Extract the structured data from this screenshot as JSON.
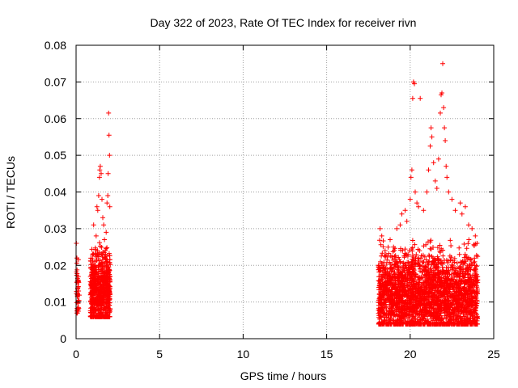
{
  "chart_data": {
    "type": "scatter",
    "title": "Day 322 of 2023, Rate Of TEC Index for receiver rivn",
    "xlabel": "GPS time / hours",
    "ylabel": "ROTI / TECUs",
    "xlim": [
      0,
      25
    ],
    "ylim": [
      0,
      0.08
    ],
    "x_ticks": [
      "0",
      "5",
      "10",
      "15",
      "20",
      "25"
    ],
    "y_ticks": [
      "0",
      "0.01",
      "0.02",
      "0.03",
      "0.04",
      "0.05",
      "0.06",
      "0.07",
      "0.08"
    ],
    "grid": true,
    "marker": "plus",
    "color": "#ff0000",
    "series": [
      {
        "points": [
          [
            0.02,
            0.026
          ],
          [
            0.05,
            0.022
          ],
          [
            0.08,
            0.012
          ],
          [
            0.1,
            0.01
          ],
          [
            0.12,
            0.008
          ],
          [
            0.15,
            0.013
          ],
          [
            1.05,
            0.031
          ],
          [
            1.1,
            0.018
          ],
          [
            1.2,
            0.028
          ],
          [
            1.3,
            0.035
          ],
          [
            1.35,
            0.039
          ],
          [
            1.4,
            0.044
          ],
          [
            1.42,
            0.046
          ],
          [
            1.45,
            0.047
          ],
          [
            1.5,
            0.045
          ],
          [
            1.55,
            0.038
          ],
          [
            1.6,
            0.033
          ],
          [
            1.65,
            0.031
          ],
          [
            1.7,
            0.027
          ],
          [
            1.75,
            0.024
          ],
          [
            1.8,
            0.029
          ],
          [
            1.85,
            0.037
          ],
          [
            1.9,
            0.039
          ],
          [
            1.92,
            0.045
          ],
          [
            1.95,
            0.0615
          ],
          [
            1.97,
            0.0555
          ],
          [
            2.0,
            0.05
          ],
          [
            2.02,
            0.036
          ],
          [
            1.25,
            0.036
          ],
          [
            1.15,
            0.021
          ],
          [
            18.2,
            0.03
          ],
          [
            18.3,
            0.028
          ],
          [
            18.5,
            0.024
          ],
          [
            18.8,
            0.027
          ],
          [
            19.0,
            0.025
          ],
          [
            19.2,
            0.03
          ],
          [
            19.4,
            0.031
          ],
          [
            19.5,
            0.034
          ],
          [
            19.7,
            0.035
          ],
          [
            19.8,
            0.032
          ],
          [
            20.0,
            0.038
          ],
          [
            20.05,
            0.044
          ],
          [
            20.1,
            0.046
          ],
          [
            20.15,
            0.0655
          ],
          [
            20.2,
            0.07
          ],
          [
            20.25,
            0.0695
          ],
          [
            20.3,
            0.04
          ],
          [
            20.4,
            0.037
          ],
          [
            20.5,
            0.036
          ],
          [
            20.6,
            0.0655
          ],
          [
            20.8,
            0.035
          ],
          [
            21.0,
            0.04
          ],
          [
            21.1,
            0.046
          ],
          [
            21.2,
            0.0525
          ],
          [
            21.25,
            0.0575
          ],
          [
            21.3,
            0.055
          ],
          [
            21.4,
            0.048
          ],
          [
            21.5,
            0.043
          ],
          [
            21.6,
            0.041
          ],
          [
            21.7,
            0.049
          ],
          [
            21.8,
            0.0615
          ],
          [
            21.85,
            0.0665
          ],
          [
            21.9,
            0.067
          ],
          [
            21.95,
            0.075
          ],
          [
            22.0,
            0.063
          ],
          [
            22.05,
            0.0575
          ],
          [
            22.1,
            0.054
          ],
          [
            22.15,
            0.047
          ],
          [
            22.2,
            0.044
          ],
          [
            22.3,
            0.04
          ],
          [
            22.5,
            0.038
          ],
          [
            22.7,
            0.035
          ],
          [
            23.0,
            0.037
          ],
          [
            23.1,
            0.034
          ],
          [
            23.3,
            0.036
          ],
          [
            23.5,
            0.031
          ],
          [
            23.7,
            0.03
          ],
          [
            23.9,
            0.028
          ],
          [
            24.0,
            0.026
          ],
          [
            23.4,
            0.004
          ],
          [
            22.6,
            0.005
          ],
          [
            21.5,
            0.006
          ],
          [
            20.9,
            0.005
          ],
          [
            19.5,
            0.007
          ]
        ],
        "clusters": [
          {
            "x_range": [
              0.0,
              0.2
            ],
            "y_range": [
              0.007,
              0.026
            ],
            "count": 40
          },
          {
            "x_range": [
              0.85,
              2.05
            ],
            "y_range": [
              0.006,
              0.03
            ],
            "count": 700
          },
          {
            "x_range": [
              18.1,
              24.05
            ],
            "y_range": [
              0.004,
              0.031
            ],
            "count": 2600
          }
        ]
      }
    ]
  }
}
